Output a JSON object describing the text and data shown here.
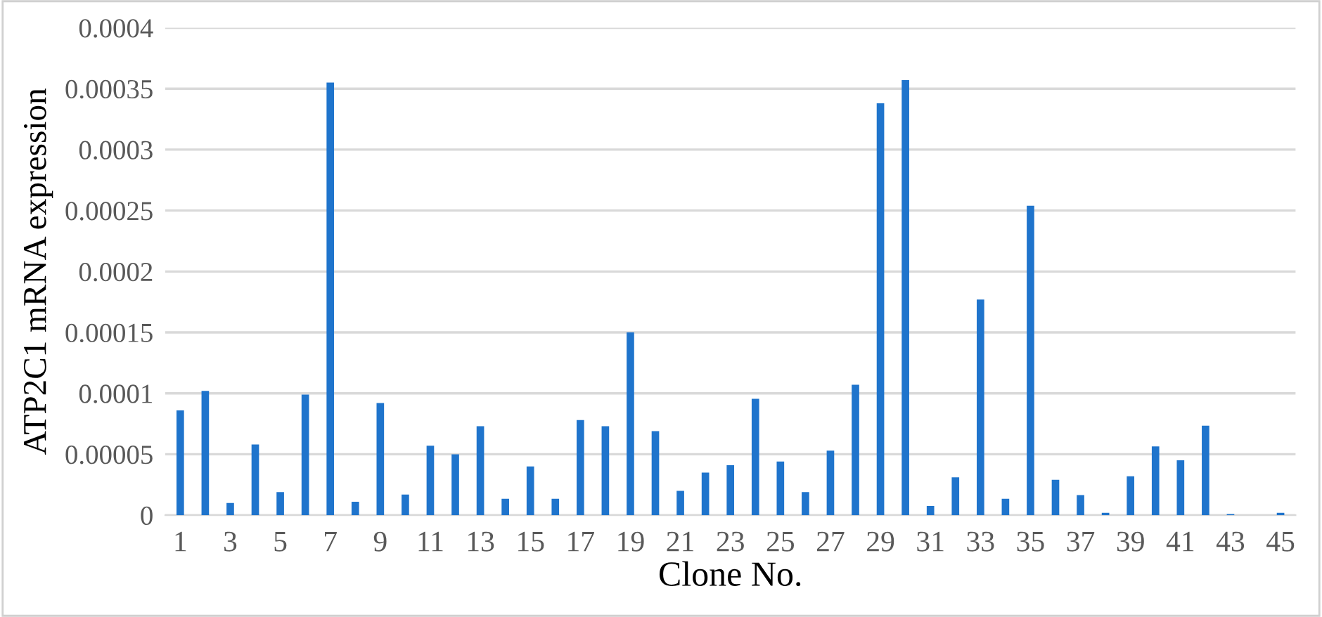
{
  "chart_data": {
    "type": "bar",
    "xlabel": "Clone No.",
    "ylabel": "ATP2C1 mRNA expression",
    "categories": [
      "1",
      null,
      "3",
      null,
      "5",
      null,
      "7",
      null,
      "9",
      null,
      "11",
      null,
      "13",
      null,
      "15",
      null,
      "17",
      null,
      "19",
      null,
      "21",
      null,
      "23",
      null,
      "25",
      null,
      "27",
      null,
      "29",
      null,
      "31",
      null,
      "33",
      null,
      "35",
      null,
      "37",
      null,
      "39",
      null,
      "41",
      null,
      "43",
      null,
      "45"
    ],
    "values": [
      8.6e-05,
      0.000102,
      1e-05,
      5.8e-05,
      1.9e-05,
      9.9e-05,
      0.000355,
      1.1e-05,
      9.2e-05,
      1.7e-05,
      5.7e-05,
      5e-05,
      7.3e-05,
      1.35e-05,
      4e-05,
      1.35e-05,
      7.8e-05,
      7.3e-05,
      0.00015,
      6.9e-05,
      2e-05,
      3.5e-05,
      4.1e-05,
      9.55e-05,
      4.4e-05,
      1.9e-05,
      5.3e-05,
      0.000107,
      0.000338,
      0.000357,
      7.5e-06,
      3.1e-05,
      0.000177,
      1.35e-05,
      0.000254,
      2.9e-05,
      1.65e-05,
      2e-06,
      3.2e-05,
      5.65e-05,
      4.5e-05,
      7.35e-05,
      1e-06,
      0,
      2e-06
    ],
    "color": "#1f74cc",
    "ylim": [
      0,
      0.0004
    ],
    "yticks": [
      {
        "value": 0,
        "label": "0"
      },
      {
        "value": 5e-05,
        "label": "0.00005"
      },
      {
        "value": 0.0001,
        "label": "0.0001"
      },
      {
        "value": 0.00015,
        "label": "0.00015"
      },
      {
        "value": 0.0002,
        "label": "0.0002"
      },
      {
        "value": 0.00025,
        "label": "0.00025"
      },
      {
        "value": 0.0003,
        "label": "0.0003"
      },
      {
        "value": 0.00035,
        "label": "0.00035"
      },
      {
        "value": 0.0004,
        "label": "0.0004"
      }
    ],
    "grid": "y"
  }
}
